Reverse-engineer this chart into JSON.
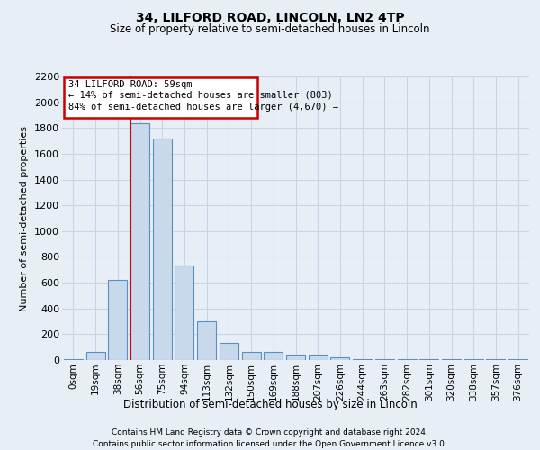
{
  "title": "34, LILFORD ROAD, LINCOLN, LN2 4TP",
  "subtitle": "Size of property relative to semi-detached houses in Lincoln",
  "xlabel": "Distribution of semi-detached houses by size in Lincoln",
  "ylabel": "Number of semi-detached properties",
  "bar_labels": [
    "0sqm",
    "19sqm",
    "38sqm",
    "56sqm",
    "75sqm",
    "94sqm",
    "113sqm",
    "132sqm",
    "150sqm",
    "169sqm",
    "188sqm",
    "207sqm",
    "226sqm",
    "244sqm",
    "263sqm",
    "282sqm",
    "301sqm",
    "320sqm",
    "338sqm",
    "357sqm",
    "376sqm"
  ],
  "bar_values": [
    10,
    60,
    625,
    1840,
    1720,
    730,
    300,
    130,
    60,
    60,
    40,
    40,
    20,
    5,
    5,
    5,
    5,
    5,
    5,
    5,
    5
  ],
  "bar_color": "#c9d9ec",
  "bar_edge_color": "#5a8fc3",
  "property_line_color": "#cc0000",
  "property_line_x": 3.0,
  "annotation_title": "34 LILFORD ROAD: 59sqm",
  "annotation_line1": "← 14% of semi-detached houses are smaller (803)",
  "annotation_line2": "84% of semi-detached houses are larger (4,670) →",
  "annotation_box_edgecolor": "#cc0000",
  "ylim_max": 2200,
  "yticks": [
    0,
    200,
    400,
    600,
    800,
    1000,
    1200,
    1400,
    1600,
    1800,
    2000,
    2200
  ],
  "footer1": "Contains HM Land Registry data © Crown copyright and database right 2024.",
  "footer2": "Contains public sector information licensed under the Open Government Licence v3.0.",
  "bg_color": "#e8eef5",
  "grid_color": "#c8d4e8"
}
